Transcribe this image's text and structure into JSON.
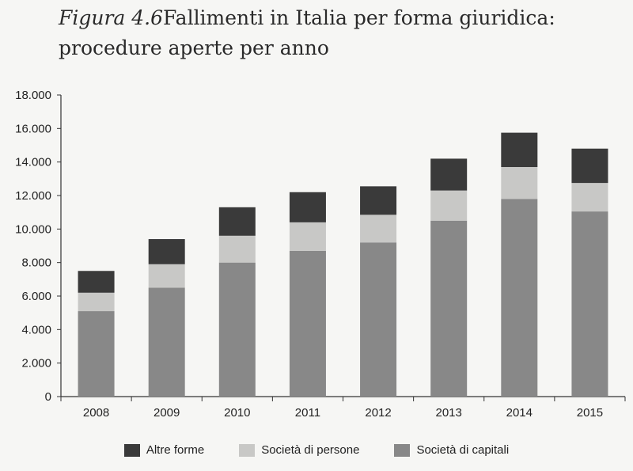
{
  "title": {
    "figure": "Figura 4.6",
    "text": "Fallimenti in Italia per forma giuridica:",
    "subtitle": "procedure aperte per anno"
  },
  "chart_data": {
    "type": "bar",
    "stacked": true,
    "categories": [
      "2008",
      "2009",
      "2010",
      "2011",
      "2012",
      "2013",
      "2014",
      "2015"
    ],
    "series": [
      {
        "name": "Società di capitali",
        "values": [
          5100,
          6500,
          8000,
          8700,
          9200,
          10500,
          11800,
          11050
        ],
        "color": "#888888"
      },
      {
        "name": "Società di persone",
        "values": [
          1100,
          1400,
          1600,
          1700,
          1650,
          1800,
          1900,
          1700
        ],
        "color": "#c8c8c6"
      },
      {
        "name": "Altre forme",
        "values": [
          1300,
          1500,
          1700,
          1800,
          1700,
          1900,
          2050,
          2050
        ],
        "color": "#3a3a3a"
      }
    ],
    "ylim": [
      0,
      18000
    ],
    "yticks": [
      "0",
      "2.000",
      "4.000",
      "6.000",
      "8.000",
      "10.000",
      "12.000",
      "14.000",
      "16.000",
      "18.000"
    ],
    "grid": false,
    "legend_position": "bottom"
  },
  "legend": [
    {
      "label": "Altre forme",
      "color": "#3a3a3a"
    },
    {
      "label": "Società di persone",
      "color": "#c8c8c6"
    },
    {
      "label": "Società di capitali",
      "color": "#888888"
    }
  ]
}
